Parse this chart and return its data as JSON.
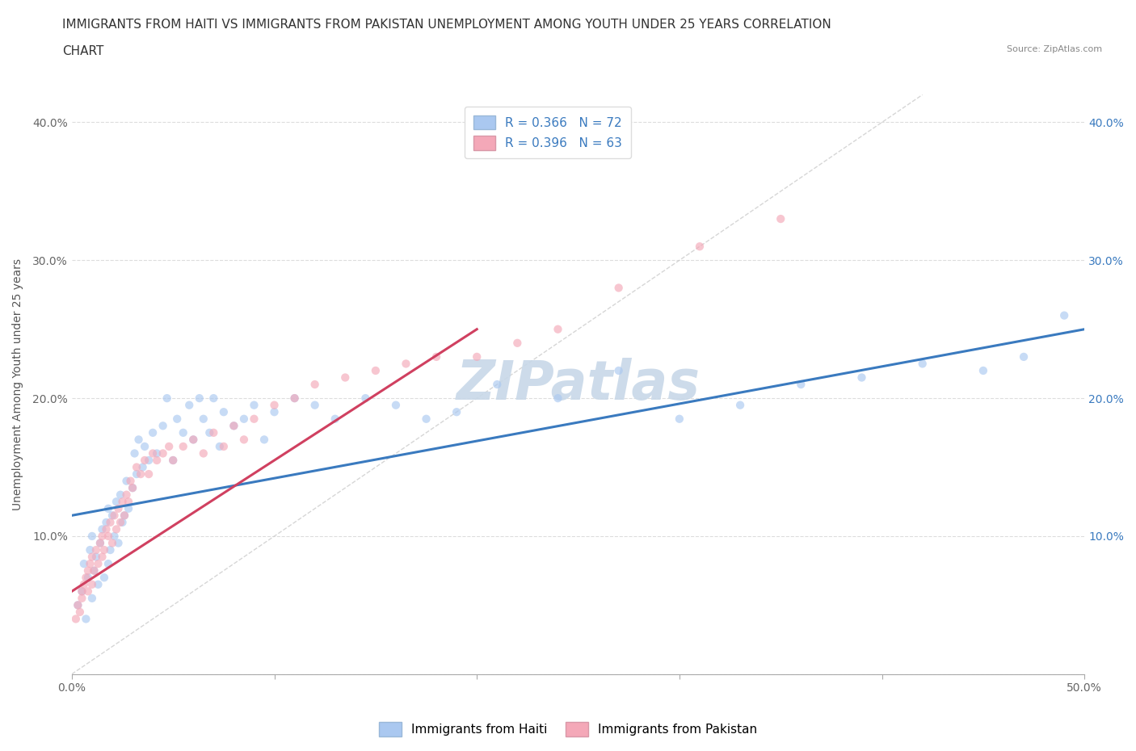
{
  "title_line1": "IMMIGRANTS FROM HAITI VS IMMIGRANTS FROM PAKISTAN UNEMPLOYMENT AMONG YOUTH UNDER 25 YEARS CORRELATION",
  "title_line2": "CHART",
  "source": "Source: ZipAtlas.com",
  "ylabel": "Unemployment Among Youth under 25 years",
  "xlim": [
    0.0,
    0.5
  ],
  "ylim": [
    0.0,
    0.42
  ],
  "x_ticks": [
    0.0,
    0.1,
    0.2,
    0.3,
    0.4,
    0.5
  ],
  "x_tick_labels": [
    "0.0%",
    "",
    "",
    "",
    "",
    "50.0%"
  ],
  "y_ticks": [
    0.0,
    0.1,
    0.2,
    0.3,
    0.4
  ],
  "y_tick_labels": [
    "",
    "10.0%",
    "20.0%",
    "30.0%",
    "40.0%"
  ],
  "haiti_R": 0.366,
  "haiti_N": 72,
  "pakistan_R": 0.396,
  "pakistan_N": 63,
  "haiti_color": "#aac8f0",
  "pakistan_color": "#f4a8b8",
  "haiti_line_color": "#3a7abf",
  "pakistan_line_color": "#d04060",
  "diagonal_color": "#cccccc",
  "watermark_text": "ZIPatlas",
  "watermark_color": "#c8d8e8",
  "haiti_scatter_x": [
    0.003,
    0.005,
    0.006,
    0.007,
    0.008,
    0.009,
    0.01,
    0.01,
    0.011,
    0.012,
    0.013,
    0.014,
    0.015,
    0.016,
    0.017,
    0.018,
    0.018,
    0.019,
    0.02,
    0.021,
    0.022,
    0.023,
    0.024,
    0.025,
    0.026,
    0.027,
    0.028,
    0.03,
    0.031,
    0.032,
    0.033,
    0.035,
    0.036,
    0.038,
    0.04,
    0.042,
    0.045,
    0.047,
    0.05,
    0.052,
    0.055,
    0.058,
    0.06,
    0.063,
    0.065,
    0.068,
    0.07,
    0.073,
    0.075,
    0.08,
    0.085,
    0.09,
    0.095,
    0.1,
    0.11,
    0.12,
    0.13,
    0.145,
    0.16,
    0.175,
    0.19,
    0.21,
    0.24,
    0.27,
    0.3,
    0.33,
    0.36,
    0.39,
    0.42,
    0.45,
    0.47,
    0.49
  ],
  "haiti_scatter_y": [
    0.05,
    0.06,
    0.08,
    0.04,
    0.07,
    0.09,
    0.055,
    0.1,
    0.075,
    0.085,
    0.065,
    0.095,
    0.105,
    0.07,
    0.11,
    0.08,
    0.12,
    0.09,
    0.115,
    0.1,
    0.125,
    0.095,
    0.13,
    0.11,
    0.115,
    0.14,
    0.12,
    0.135,
    0.16,
    0.145,
    0.17,
    0.15,
    0.165,
    0.155,
    0.175,
    0.16,
    0.18,
    0.2,
    0.155,
    0.185,
    0.175,
    0.195,
    0.17,
    0.2,
    0.185,
    0.175,
    0.2,
    0.165,
    0.19,
    0.18,
    0.185,
    0.195,
    0.17,
    0.19,
    0.2,
    0.195,
    0.185,
    0.2,
    0.195,
    0.185,
    0.19,
    0.21,
    0.2,
    0.22,
    0.185,
    0.195,
    0.21,
    0.215,
    0.225,
    0.22,
    0.23,
    0.26
  ],
  "pakistan_scatter_x": [
    0.002,
    0.003,
    0.004,
    0.005,
    0.005,
    0.006,
    0.007,
    0.008,
    0.008,
    0.009,
    0.01,
    0.01,
    0.011,
    0.012,
    0.013,
    0.014,
    0.015,
    0.015,
    0.016,
    0.017,
    0.018,
    0.019,
    0.02,
    0.021,
    0.022,
    0.023,
    0.024,
    0.025,
    0.026,
    0.027,
    0.028,
    0.029,
    0.03,
    0.032,
    0.034,
    0.036,
    0.038,
    0.04,
    0.042,
    0.045,
    0.048,
    0.05,
    0.055,
    0.06,
    0.065,
    0.07,
    0.075,
    0.08,
    0.085,
    0.09,
    0.1,
    0.11,
    0.12,
    0.135,
    0.15,
    0.165,
    0.18,
    0.2,
    0.22,
    0.24,
    0.27,
    0.31,
    0.35
  ],
  "pakistan_scatter_y": [
    0.04,
    0.05,
    0.045,
    0.06,
    0.055,
    0.065,
    0.07,
    0.06,
    0.075,
    0.08,
    0.065,
    0.085,
    0.075,
    0.09,
    0.08,
    0.095,
    0.085,
    0.1,
    0.09,
    0.105,
    0.1,
    0.11,
    0.095,
    0.115,
    0.105,
    0.12,
    0.11,
    0.125,
    0.115,
    0.13,
    0.125,
    0.14,
    0.135,
    0.15,
    0.145,
    0.155,
    0.145,
    0.16,
    0.155,
    0.16,
    0.165,
    0.155,
    0.165,
    0.17,
    0.16,
    0.175,
    0.165,
    0.18,
    0.17,
    0.185,
    0.195,
    0.2,
    0.21,
    0.215,
    0.22,
    0.225,
    0.23,
    0.23,
    0.24,
    0.25,
    0.28,
    0.31,
    0.33
  ],
  "haiti_trend_x": [
    0.0,
    0.5
  ],
  "haiti_trend_y": [
    0.115,
    0.25
  ],
  "pakistan_trend_x": [
    0.0,
    0.2
  ],
  "pakistan_trend_y": [
    0.06,
    0.25
  ],
  "title_fontsize": 11,
  "axis_label_fontsize": 10,
  "tick_fontsize": 10,
  "legend_fontsize": 11,
  "scatter_size": 55,
  "scatter_alpha": 0.65
}
